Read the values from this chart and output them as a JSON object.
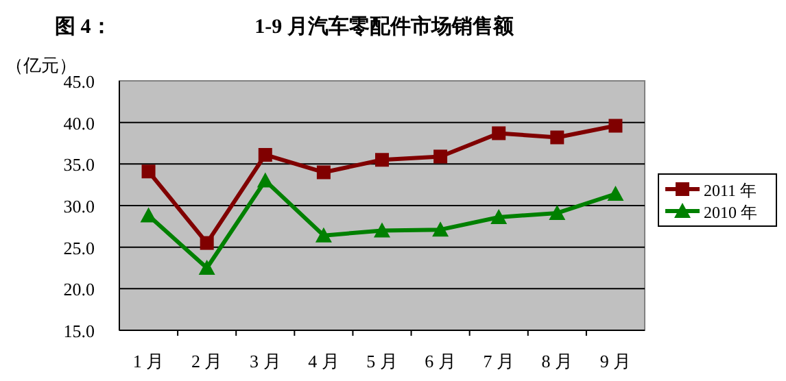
{
  "chart_data": {
    "type": "line",
    "title": "图 4：",
    "subtitle": "1-9 月汽车零配件市场销售额",
    "ylabel": "（亿元）",
    "categories": [
      "1 月",
      "2 月",
      "3 月",
      "4 月",
      "5 月",
      "6 月",
      "7 月",
      "8 月",
      "9 月"
    ],
    "series": [
      {
        "name": "2011 年",
        "color": "#800000",
        "marker": "square",
        "values": [
          34.1,
          25.5,
          36.1,
          34.0,
          35.5,
          35.9,
          38.7,
          38.2,
          39.6
        ]
      },
      {
        "name": "2010 年",
        "color": "#008000",
        "marker": "triangle",
        "values": [
          28.8,
          22.5,
          33.0,
          26.4,
          27.0,
          27.1,
          28.6,
          29.1,
          31.4
        ]
      }
    ],
    "ylim": [
      15,
      45
    ],
    "yticks": [
      {
        "value": 15,
        "label": "15.0"
      },
      {
        "value": 20,
        "label": "20.0"
      },
      {
        "value": 25,
        "label": "25.0"
      },
      {
        "value": 30,
        "label": "30.0"
      },
      {
        "value": 35,
        "label": "35.0"
      },
      {
        "value": 40,
        "label": "40.0"
      },
      {
        "value": 45,
        "label": "45.0"
      }
    ],
    "grid": "y",
    "legend": "right",
    "line_style": "solid"
  }
}
